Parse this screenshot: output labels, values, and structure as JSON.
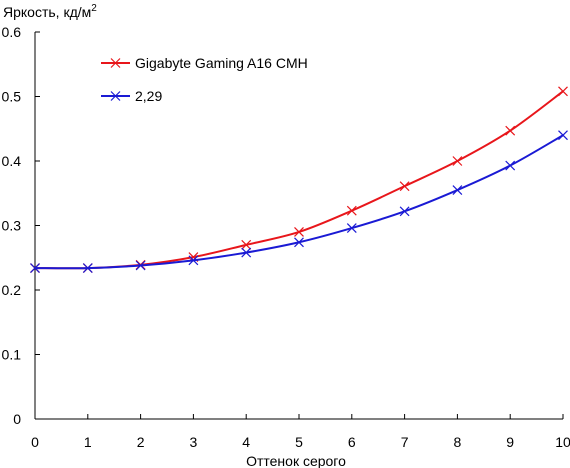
{
  "chart_data": {
    "type": "line",
    "ylabel": "Яркость, кд/м",
    "ylabel_sup": "2",
    "xlabel": "Оттенок серого",
    "x": [
      0,
      1,
      2,
      3,
      4,
      5,
      6,
      7,
      8,
      9,
      10
    ],
    "x_tick_labels": [
      "0",
      "1",
      "2",
      "3",
      "4",
      "5",
      "6",
      "7",
      "8",
      "9",
      "10"
    ],
    "y_tick_labels": [
      "0",
      "0.1",
      "0.2",
      "0.3",
      "0.4",
      "0.5",
      "0.6"
    ],
    "y_ticks": [
      0,
      0.1,
      0.2,
      0.3,
      0.4,
      0.5,
      0.6
    ],
    "xlim": [
      0,
      10
    ],
    "ylim": [
      0,
      0.6
    ],
    "grid": false,
    "legend_position": "top-left",
    "series": [
      {
        "name": "Gigabyte Gaming A16 CMH",
        "color": "#e8161b",
        "marker": "x",
        "values": [
          0.234,
          0.234,
          0.239,
          0.251,
          0.27,
          0.29,
          0.323,
          0.361,
          0.4,
          0.447,
          0.508
        ]
      },
      {
        "name": "2,29",
        "color": "#1a1ad4",
        "marker": "x",
        "values": [
          0.234,
          0.234,
          0.238,
          0.246,
          0.258,
          0.274,
          0.296,
          0.322,
          0.355,
          0.393,
          0.44
        ]
      }
    ]
  }
}
